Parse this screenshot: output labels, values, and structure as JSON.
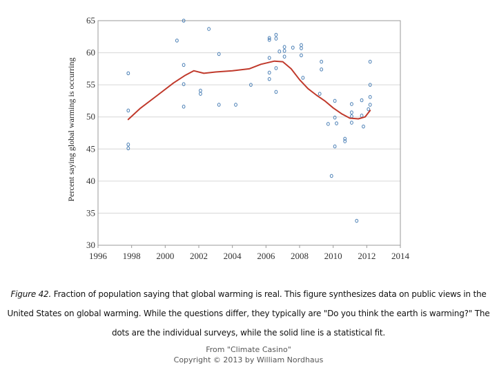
{
  "chart_data": {
    "type": "scatter",
    "title": "",
    "xlabel": "",
    "ylabel": "Percent saying global warming is occurring",
    "xlim": [
      1996,
      2014
    ],
    "ylim": [
      30,
      65
    ],
    "xticks": [
      1996,
      1998,
      2000,
      2002,
      2004,
      2006,
      2008,
      2010,
      2012,
      2014
    ],
    "yticks": [
      30,
      35,
      40,
      45,
      50,
      55,
      60,
      65
    ],
    "grid": "horizontal",
    "legend": "none",
    "series": [
      {
        "kind": "points",
        "marker": "circle",
        "color": "#4a7fb5",
        "points": [
          {
            "x": 1997.8,
            "y": 56.8
          },
          {
            "x": 1997.8,
            "y": 51.0
          },
          {
            "x": 1997.8,
            "y": 45.7
          },
          {
            "x": 1997.8,
            "y": 45.1
          },
          {
            "x": 2000.7,
            "y": 61.9
          },
          {
            "x": 2001.1,
            "y": 65.0
          },
          {
            "x": 2001.1,
            "y": 58.1
          },
          {
            "x": 2001.1,
            "y": 55.1
          },
          {
            "x": 2001.1,
            "y": 51.6
          },
          {
            "x": 2002.1,
            "y": 54.1
          },
          {
            "x": 2002.1,
            "y": 53.6
          },
          {
            "x": 2002.6,
            "y": 63.7
          },
          {
            "x": 2003.2,
            "y": 59.8
          },
          {
            "x": 2003.2,
            "y": 51.9
          },
          {
            "x": 2004.2,
            "y": 51.9
          },
          {
            "x": 2005.1,
            "y": 55.0
          },
          {
            "x": 2006.2,
            "y": 62.3
          },
          {
            "x": 2006.2,
            "y": 62.0
          },
          {
            "x": 2006.2,
            "y": 59.2
          },
          {
            "x": 2006.2,
            "y": 56.9
          },
          {
            "x": 2006.2,
            "y": 55.9
          },
          {
            "x": 2006.6,
            "y": 62.8
          },
          {
            "x": 2006.6,
            "y": 62.2
          },
          {
            "x": 2006.6,
            "y": 57.6
          },
          {
            "x": 2006.6,
            "y": 53.9
          },
          {
            "x": 2006.8,
            "y": 60.2
          },
          {
            "x": 2007.1,
            "y": 60.9
          },
          {
            "x": 2007.1,
            "y": 60.3
          },
          {
            "x": 2007.1,
            "y": 59.4
          },
          {
            "x": 2007.6,
            "y": 60.8
          },
          {
            "x": 2008.1,
            "y": 61.2
          },
          {
            "x": 2008.1,
            "y": 60.7
          },
          {
            "x": 2008.1,
            "y": 59.6
          },
          {
            "x": 2008.2,
            "y": 56.1
          },
          {
            "x": 2009.3,
            "y": 58.6
          },
          {
            "x": 2009.3,
            "y": 57.4
          },
          {
            "x": 2009.2,
            "y": 53.6
          },
          {
            "x": 2009.7,
            "y": 48.9
          },
          {
            "x": 2010.1,
            "y": 52.5
          },
          {
            "x": 2010.1,
            "y": 49.9
          },
          {
            "x": 2010.2,
            "y": 49.0
          },
          {
            "x": 2010.1,
            "y": 45.4
          },
          {
            "x": 2009.9,
            "y": 40.8
          },
          {
            "x": 2010.7,
            "y": 46.6
          },
          {
            "x": 2010.7,
            "y": 46.2
          },
          {
            "x": 2011.1,
            "y": 52.0
          },
          {
            "x": 2011.1,
            "y": 50.7
          },
          {
            "x": 2011.1,
            "y": 50.1
          },
          {
            "x": 2011.1,
            "y": 49.1
          },
          {
            "x": 2011.4,
            "y": 33.8
          },
          {
            "x": 2011.7,
            "y": 52.6
          },
          {
            "x": 2011.7,
            "y": 50.2
          },
          {
            "x": 2011.8,
            "y": 48.5
          },
          {
            "x": 2012.2,
            "y": 58.6
          },
          {
            "x": 2012.2,
            "y": 55.0
          },
          {
            "x": 2012.2,
            "y": 53.1
          },
          {
            "x": 2012.2,
            "y": 51.9
          },
          {
            "x": 2012.1,
            "y": 51.2
          }
        ]
      },
      {
        "kind": "line",
        "color": "#c0392b",
        "x": [
          1997.8,
          1998.5,
          1999.5,
          2000.5,
          2001.2,
          2001.7,
          2002.3,
          2003.0,
          2004.0,
          2005.0,
          2005.7,
          2006.5,
          2007.0,
          2007.5,
          2008.0,
          2008.5,
          2009.0,
          2009.5,
          2010.0,
          2010.5,
          2011.0,
          2011.5,
          2011.9,
          2012.2
        ],
        "y": [
          49.6,
          51.3,
          53.3,
          55.3,
          56.5,
          57.2,
          56.8,
          57.0,
          57.2,
          57.5,
          58.2,
          58.7,
          58.6,
          57.5,
          55.8,
          54.4,
          53.4,
          52.5,
          51.4,
          50.5,
          49.8,
          49.7,
          50.0,
          51.0
        ]
      }
    ]
  },
  "caption": {
    "figure_label": "Figure 42.",
    "line1": " Fraction of population saying that global warming is real. This figure synthesizes data on public views in the",
    "line2": "United States on global warming. While the questions differ, they typically are \"Do you think the earth is warming?\" The",
    "line3": "dots are the individual surveys, while the solid line is a statistical fit."
  },
  "credit": {
    "line1": "From \"Climate Casino\"",
    "line2": "Copyright © 2013 by William Nordhaus"
  }
}
